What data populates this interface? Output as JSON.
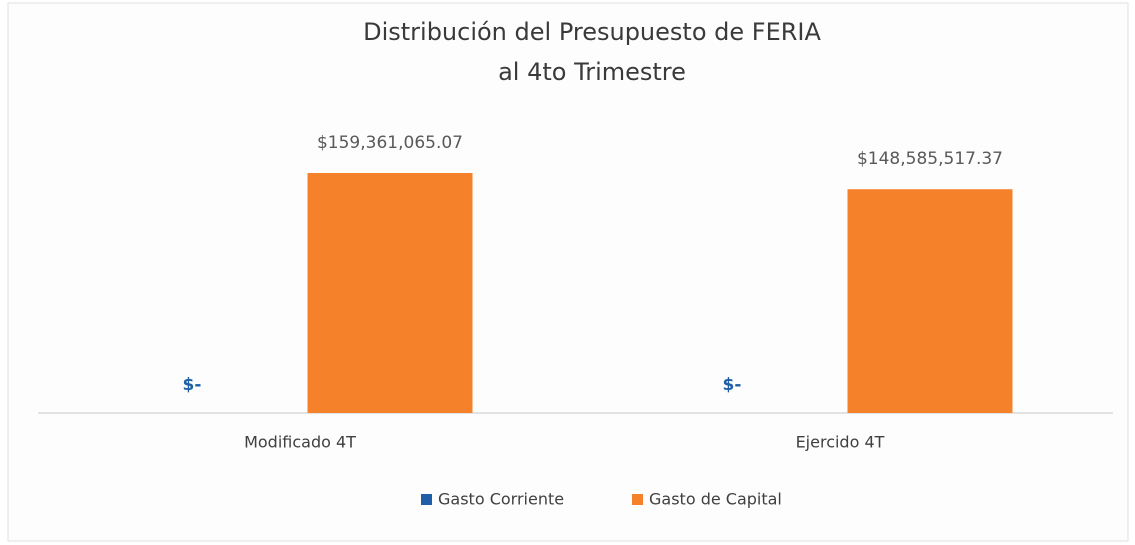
{
  "chart_data": {
    "type": "bar",
    "title": [
      "Distribución  del Presupuesto de FERIA",
      "al 4to Trimestre"
    ],
    "categories": [
      "Modificado 4T",
      "Ejercido 4T"
    ],
    "series": [
      {
        "name": "Gasto Corriente",
        "color": "#1f5fa8",
        "values": [
          0,
          0
        ],
        "value_labels": [
          "$-",
          "$-"
        ]
      },
      {
        "name": "Gasto de Capital",
        "color": "#f5822a",
        "values": [
          159361065.07,
          148585517.37
        ],
        "value_labels": [
          "$159,361,065.07",
          "$148,585,517.37"
        ]
      }
    ]
  }
}
